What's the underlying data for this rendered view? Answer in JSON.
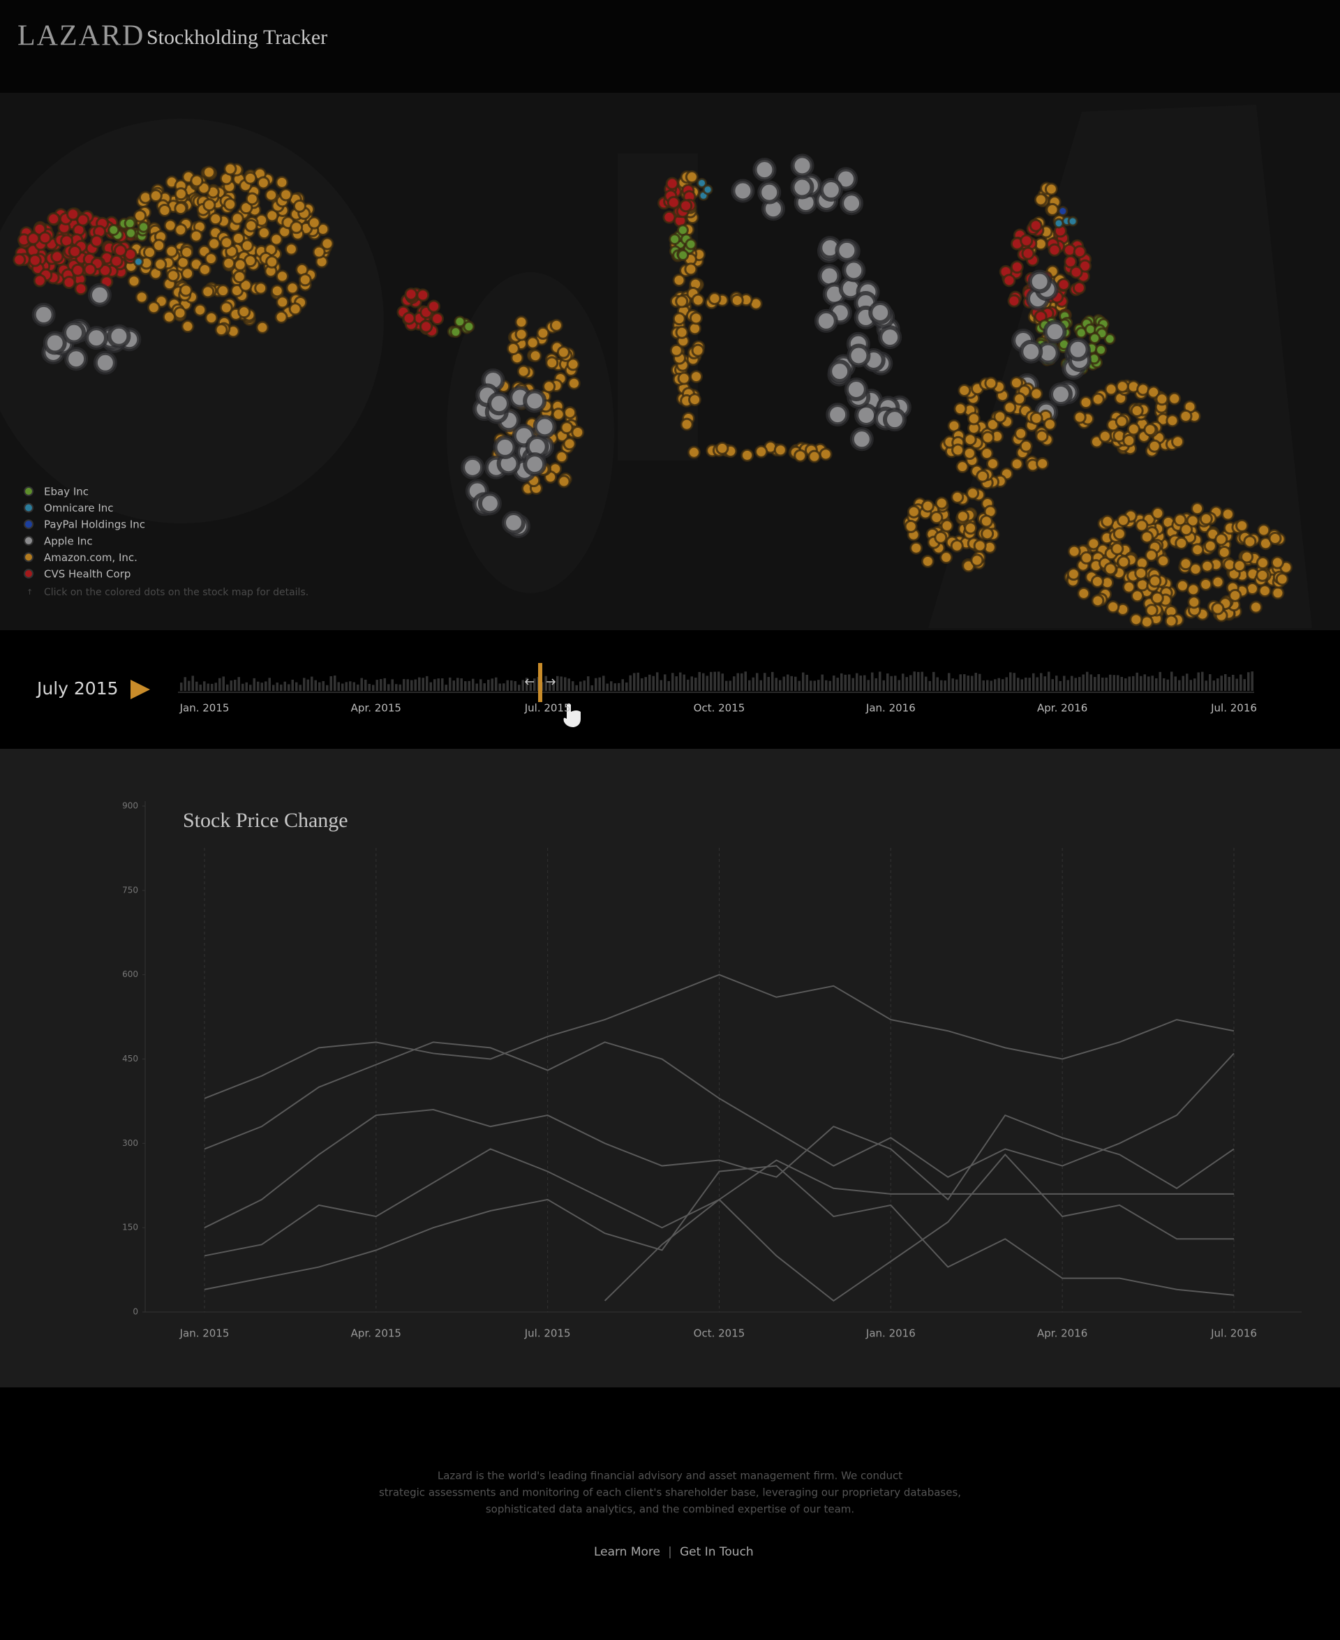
{
  "header": {
    "logo": "LAZARD",
    "title": "Stockholding Tracker"
  },
  "legend": {
    "items": [
      {
        "name": "Ebay Inc",
        "color": "#5e8f2c"
      },
      {
        "name": "Omnicare Inc",
        "color": "#2b7d9c"
      },
      {
        "name": "PayPal Holdings Inc",
        "color": "#1c3f9e"
      },
      {
        "name": "Apple Inc",
        "color": "#8c8c8e"
      },
      {
        "name": "Amazon.com, Inc.",
        "color": "#b37b1f"
      },
      {
        "name": "CVS Health Corp",
        "color": "#a3191b"
      }
    ],
    "hint": "Click on the colored dots on the stock map for details."
  },
  "timeline": {
    "current": "July 2015"
  },
  "chart_data": {
    "type": "line",
    "title": "Stock Price Change",
    "x": [
      "2015-01",
      "2015-02",
      "2015-03",
      "2015-04",
      "2015-05",
      "2015-06",
      "2015-07",
      "2015-08",
      "2015-09",
      "2015-10",
      "2015-11",
      "2015-12",
      "2016-01",
      "2016-02",
      "2016-03",
      "2016-04",
      "2016-05",
      "2016-06",
      "2016-07"
    ],
    "xticks": [
      {
        "value": "2015-01",
        "label": "Jan. 2015"
      },
      {
        "value": "2015-04",
        "label": "Apr. 2015"
      },
      {
        "value": "2015-07",
        "label": "Jul. 2015"
      },
      {
        "value": "2015-10",
        "label": "Oct. 2015"
      },
      {
        "value": "2016-01",
        "label": "Jan. 2016"
      },
      {
        "value": "2016-04",
        "label": "Apr. 2016"
      },
      {
        "value": "2016-07",
        "label": "Jul. 2016"
      }
    ],
    "ylim": [
      0,
      900
    ],
    "yticks": [
      0,
      150,
      300,
      450,
      600,
      750,
      900
    ],
    "grid": true,
    "series": [
      {
        "color": "#5a5a5a",
        "values": [
          380,
          420,
          470,
          480,
          460,
          450,
          490,
          520,
          560,
          600,
          560,
          580,
          520,
          500,
          470,
          450,
          480,
          520,
          500
        ]
      },
      {
        "color": "#5a5a5a",
        "values": [
          290,
          330,
          400,
          440,
          480,
          470,
          430,
          480,
          450,
          380,
          320,
          260,
          310,
          240,
          290,
          260,
          300,
          350,
          460
        ]
      },
      {
        "color": "#5a5a5a",
        "values": [
          150,
          200,
          280,
          350,
          360,
          330,
          350,
          300,
          260,
          270,
          240,
          330,
          290,
          200,
          350,
          310,
          280,
          220,
          290
        ]
      },
      {
        "color": "#5a5a5a",
        "values": [
          100,
          120,
          190,
          170,
          230,
          290,
          250,
          200,
          150,
          200,
          270,
          220,
          210,
          210,
          210,
          210,
          210,
          210,
          210
        ]
      },
      {
        "color": "#5a5a5a",
        "values": [
          40,
          60,
          80,
          110,
          150,
          180,
          200,
          140,
          110,
          250,
          260,
          170,
          190,
          80,
          130,
          60,
          60,
          40,
          30
        ]
      },
      {
        "color": "#5a5a5a",
        "values": [
          null,
          null,
          null,
          null,
          null,
          null,
          null,
          20,
          120,
          200,
          100,
          20,
          90,
          160,
          280,
          170,
          190,
          130,
          130
        ]
      }
    ]
  },
  "footer": {
    "lines": [
      "Lazard is the world's leading financial advisory and asset management firm. We conduct",
      "strategic assessments and monitoring of each client's shareholder base, leveraging our proprietary databases,",
      "sophisticated data analytics, and the combined expertise of our team."
    ],
    "links": [
      "Learn More",
      "Get In Touch"
    ]
  }
}
